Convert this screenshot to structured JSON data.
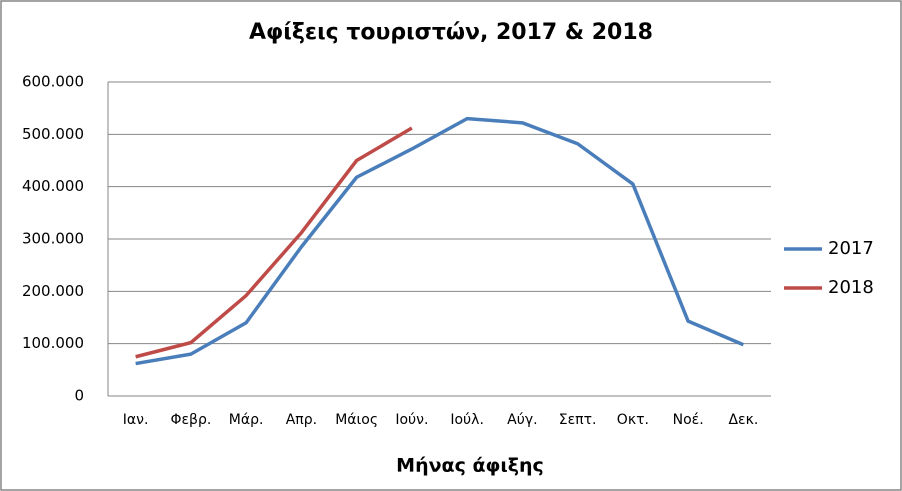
{
  "chart_data": {
    "type": "line",
    "title": "Αφίξεις τουριστών, 2017 & 2018",
    "x_label": "Μήνας άφιξης",
    "categories": [
      "Ιαν.",
      "Φεβρ.",
      "Μάρ.",
      "Απρ.",
      "Μάιος",
      "Ιούν.",
      "Ιούλ.",
      "Αύγ.",
      "Σεπτ.",
      "Οκτ.",
      "Νοέ.",
      "Δεκ."
    ],
    "series": [
      {
        "name": "2017",
        "color": "#4a7ebb",
        "values": [
          62000,
          80000,
          140000,
          285000,
          418000,
          472000,
          530000,
          522000,
          482000,
          405000,
          143000,
          98000
        ]
      },
      {
        "name": "2018",
        "color": "#be4b48",
        "values": [
          75000,
          102000,
          192000,
          312000,
          450000,
          512000,
          null,
          null,
          null,
          null,
          null,
          null
        ]
      }
    ],
    "ylim": [
      0,
      600000
    ],
    "yticks": [
      0,
      {
        "value": 100000,
        "label": "100.000"
      },
      {
        "value": 200000,
        "label": "200.000"
      },
      {
        "value": 300000,
        "label": "300.000"
      },
      {
        "value": 400000,
        "label": "400.000"
      },
      {
        "value": 500000,
        "label": "500.000"
      },
      {
        "value": 600000,
        "label": "600.000"
      }
    ],
    "grid": true,
    "legend": "right"
  }
}
